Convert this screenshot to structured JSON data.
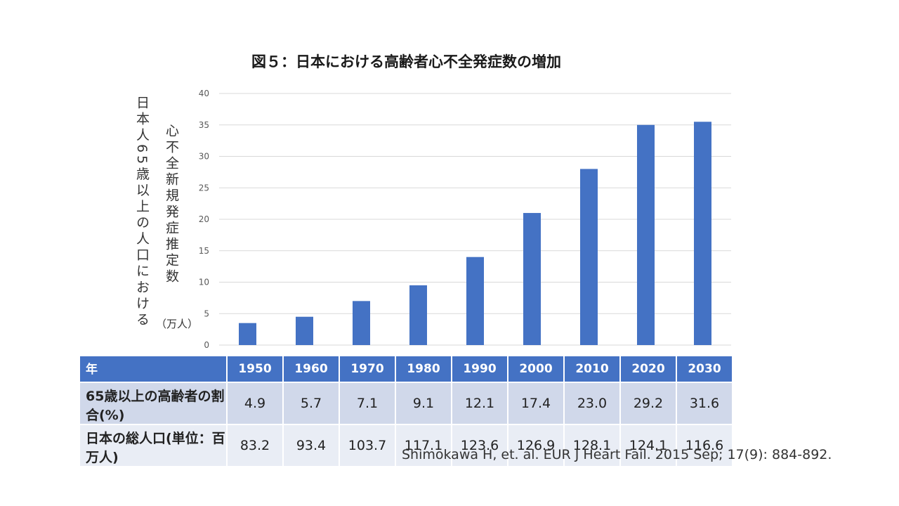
{
  "chart_data": {
    "type": "bar",
    "title": "図５：日本における高齢者心不全発症数の増加",
    "ylabel_outer": "日本人65歳以上の人口における",
    "ylabel_inner": "心不全新規発症推定数",
    "ylabel_unit": "（万人）",
    "categories": [
      "1950",
      "1960",
      "1970",
      "1980",
      "1990",
      "2000",
      "2010",
      "2020",
      "2030"
    ],
    "values": [
      3.5,
      4.5,
      7,
      9.5,
      14,
      21,
      28,
      35,
      35.5
    ],
    "ylim": [
      0,
      40
    ],
    "yticks": [
      "0",
      "5",
      "10",
      "15",
      "20",
      "25",
      "30",
      "35",
      "40"
    ],
    "grid": true,
    "bar_color": "#4472c4",
    "grid_color": "#d9d9d9"
  },
  "table": {
    "header_label": "年",
    "years": [
      "1950",
      "1960",
      "1970",
      "1980",
      "1990",
      "2000",
      "2010",
      "2020",
      "2030"
    ],
    "rows": [
      {
        "label": "65歳以上の高齢者の割合(%)",
        "values": [
          "4.9",
          "5.7",
          "7.1",
          "9.1",
          "12.1",
          "17.4",
          "23.0",
          "29.2",
          "31.6"
        ]
      },
      {
        "label": "日本の総人口(単位：百万人)",
        "values": [
          "83.2",
          "93.4",
          "103.7",
          "117.1",
          "123.6",
          "126.9",
          "128.1",
          "124.1",
          "116.6"
        ]
      }
    ]
  },
  "citation": "Shimokawa H, et. al. EUR J Heart Fail. 2015 Sep; 17(9): 884-892."
}
